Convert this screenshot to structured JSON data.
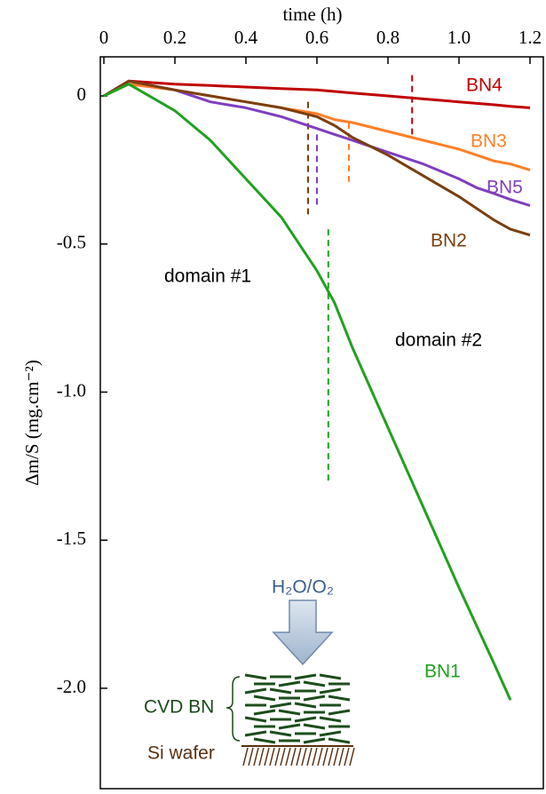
{
  "chart_data": {
    "type": "line",
    "x_label": "time  (h)",
    "y_label": "Δm/S (mg.cm⁻²)",
    "xlim": [
      -0.01,
      1.2375
    ],
    "ylim": [
      -2.339,
      0.132
    ],
    "xticks": [
      0,
      0.2,
      0.4,
      0.6,
      0.8,
      {
        "value": 1.0,
        "label": "1.0"
      },
      1.2
    ],
    "yticks": [
      0,
      -0.5,
      {
        "value": -1.0,
        "label": "-1.0"
      },
      -1.5,
      {
        "value": -2.0,
        "label": "-2.0"
      }
    ],
    "x": [
      0,
      0.07,
      0.2,
      0.3,
      0.4,
      0.5,
      0.6,
      0.65,
      0.7,
      0.8,
      0.9,
      1.0,
      1.05,
      1.1,
      1.145,
      1.2
    ],
    "series": [
      {
        "name": "BN1",
        "color": "#22a022",
        "values": [
          0,
          0.04,
          -0.05,
          -0.15,
          -0.28,
          -0.41,
          -0.59,
          -0.7,
          -0.85,
          -1.12,
          -1.39,
          -1.66,
          -1.79,
          -1.92,
          -2.04,
          null
        ]
      },
      {
        "name": "BN2",
        "color": "#7b3f10",
        "values": [
          0,
          0.05,
          0.02,
          0.0,
          -0.02,
          -0.04,
          -0.07,
          -0.1,
          -0.14,
          -0.2,
          -0.27,
          -0.34,
          -0.38,
          -0.42,
          -0.45,
          -0.47
        ]
      },
      {
        "name": "BN3",
        "color": "#ff7f27",
        "values": [
          0,
          0.04,
          0.02,
          0.0,
          -0.02,
          -0.04,
          -0.06,
          -0.08,
          -0.09,
          -0.12,
          -0.15,
          -0.18,
          -0.2,
          -0.22,
          -0.23,
          -0.25
        ]
      },
      {
        "name": "BN4",
        "color": "#c00000",
        "values": [
          0,
          0.05,
          0.04,
          0.035,
          0.03,
          0.025,
          0.02,
          0.015,
          0.01,
          0.0,
          -0.01,
          -0.02,
          -0.025,
          -0.03,
          -0.035,
          -0.04
        ]
      },
      {
        "name": "BN5",
        "color": "#7f3fbf",
        "values": [
          0,
          0.05,
          0.02,
          -0.02,
          -0.04,
          -0.07,
          -0.11,
          -0.13,
          -0.15,
          -0.19,
          -0.23,
          -0.28,
          -0.31,
          -0.33,
          -0.35,
          -0.37
        ]
      }
    ],
    "dashed_lines": [
      {
        "series": "BN1",
        "x": 0.632,
        "y": [
          -0.45,
          -1.31
        ]
      },
      {
        "series": "BN2",
        "x": 0.575,
        "y": [
          -0.02,
          -0.4
        ]
      },
      {
        "series": "BN3",
        "x": 0.69,
        "y": [
          -0.09,
          -0.29
        ]
      },
      {
        "series": "BN4",
        "x": 0.868,
        "y": [
          0.07,
          -0.13
        ]
      },
      {
        "series": "BN5",
        "x": 0.6,
        "y": [
          -0.13,
          -0.37
        ]
      }
    ],
    "annotations": [
      "domain #1",
      "domain #2"
    ],
    "inset": {
      "gas": "H₂O/O₂",
      "layer": "CVD BN",
      "substrate": "Si wafer"
    }
  }
}
